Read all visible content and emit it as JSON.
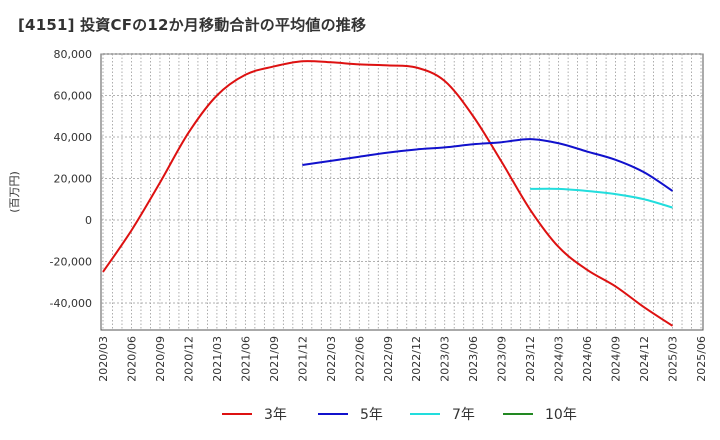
{
  "title": "[4151]  投資CFの12か月移動合計の平均値の推移",
  "chart_data": {
    "type": "line",
    "ylabel": "(百万円)",
    "ylim": [
      -53000,
      80000
    ],
    "yticks": [
      80000,
      60000,
      40000,
      20000,
      0,
      -20000,
      -40000
    ],
    "ytick_labels": [
      "80,000",
      "60,000",
      "40,000",
      "20,000",
      "0",
      "-20,000",
      "-40,000"
    ],
    "xticks": [
      "2020/03",
      "2020/06",
      "2020/09",
      "2020/12",
      "2021/03",
      "2021/06",
      "2021/09",
      "2021/12",
      "2022/03",
      "2022/06",
      "2022/09",
      "2022/12",
      "2023/03",
      "2023/06",
      "2023/09",
      "2023/12",
      "2024/03",
      "2024/06",
      "2024/09",
      "2024/12",
      "2025/03",
      "2025/06"
    ],
    "grid": true,
    "legend_position": "bottom",
    "series": [
      {
        "name": "3年",
        "color": "#dd1111",
        "x": [
          "2020/03",
          "2020/06",
          "2020/09",
          "2020/12",
          "2021/03",
          "2021/06",
          "2021/09",
          "2021/12",
          "2022/03",
          "2022/06",
          "2022/09",
          "2022/12",
          "2023/03",
          "2023/06",
          "2023/09",
          "2023/12",
          "2024/03",
          "2024/06",
          "2024/09",
          "2024/12",
          "2025/03"
        ],
        "values": [
          -25000,
          -5000,
          18000,
          42000,
          60000,
          70000,
          74000,
          76500,
          76000,
          75000,
          74500,
          73500,
          67000,
          50000,
          28000,
          5000,
          -13000,
          -24000,
          -32000,
          -42000,
          -51000
        ]
      },
      {
        "name": "5年",
        "color": "#1111cc",
        "x": [
          "2021/12",
          "2022/03",
          "2022/06",
          "2022/09",
          "2022/12",
          "2023/03",
          "2023/06",
          "2023/09",
          "2023/12",
          "2024/03",
          "2024/06",
          "2024/09",
          "2024/12",
          "2025/03"
        ],
        "values": [
          26500,
          28500,
          30500,
          32500,
          34000,
          35000,
          36500,
          37500,
          39000,
          37000,
          33000,
          29000,
          23000,
          14000
        ]
      },
      {
        "name": "7年",
        "color": "#22dddd",
        "x": [
          "2023/12",
          "2024/03",
          "2024/06",
          "2024/09",
          "2024/12",
          "2025/03"
        ],
        "values": [
          15000,
          15000,
          14000,
          12500,
          10000,
          6000
        ]
      },
      {
        "name": "10年",
        "color": "#228822",
        "x": [],
        "values": []
      }
    ]
  }
}
